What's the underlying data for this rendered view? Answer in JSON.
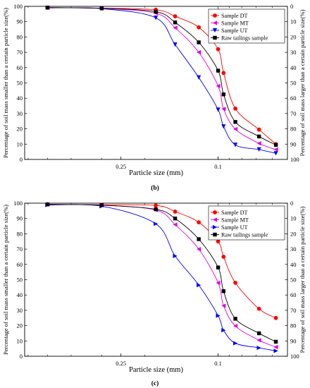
{
  "panel_captions": [
    "(b)",
    "(c)"
  ],
  "chart_data": [
    {
      "type": "line",
      "panel": "(b)",
      "xlabel": "Particle size (mm)",
      "ylabel_left": "Percentage of soil mass smaller than a certain particle size(%)",
      "ylabel_right": "Percentage of soil mass larger than a certain particle size(%)",
      "x_scale": "log-reversed",
      "x_ticks": [
        "0.25",
        "0.1"
      ],
      "ylim": [
        0,
        100
      ],
      "y_ticks_left": [
        "0",
        "10",
        "20",
        "30",
        "40",
        "50",
        "60",
        "70",
        "80",
        "90",
        "100"
      ],
      "y_ticks_right": [
        "100",
        "90",
        "80",
        "70",
        "60",
        "50",
        "40",
        "30",
        "20",
        "10",
        "0"
      ],
      "grid": false,
      "legend_position": "top-right",
      "series": [
        {
          "name": "Sample DT",
          "color": "#ff0000",
          "marker": "circle",
          "x": [
            0.5,
            0.3,
            0.18,
            0.15,
            0.12,
            0.1,
            0.095,
            0.085,
            0.068,
            0.058
          ],
          "y": [
            99.2,
            98.8,
            97.8,
            93.5,
            86.3,
            72.0,
            56.5,
            33.2,
            19.5,
            10.0
          ]
        },
        {
          "name": "Sample MT",
          "color": "#e000e0",
          "marker": "triangle-left",
          "x": [
            0.5,
            0.3,
            0.18,
            0.15,
            0.12,
            0.1,
            0.095,
            0.085,
            0.068,
            0.058
          ],
          "y": [
            99.1,
            98.7,
            95.5,
            86.0,
            70.0,
            48.0,
            33.0,
            19.8,
            10.5,
            6.5
          ]
        },
        {
          "name": "Sample UT",
          "color": "#0000ff",
          "marker": "triangle-down",
          "x": [
            0.5,
            0.3,
            0.18,
            0.15,
            0.12,
            0.1,
            0.095,
            0.085,
            0.068,
            0.058
          ],
          "y": [
            99.0,
            98.5,
            92.5,
            75.0,
            53.5,
            32.5,
            21.5,
            9.5,
            6.5,
            4.0
          ]
        },
        {
          "name": "Raw tailings sample",
          "color": "#000000",
          "marker": "square",
          "x": [
            0.5,
            0.3,
            0.18,
            0.15,
            0.12,
            0.1,
            0.095,
            0.085,
            0.068,
            0.058
          ],
          "y": [
            99.2,
            98.7,
            96.5,
            89.5,
            76.5,
            58.0,
            42.5,
            24.5,
            15.0,
            9.5
          ]
        }
      ]
    },
    {
      "type": "line",
      "panel": "(c)",
      "xlabel": "Particle size (mm)",
      "ylabel_left": "Percentage of soil mass smaller than a certain particle size(%)",
      "ylabel_right": "Percentage of soil mass larger than a certain particle size(%)",
      "x_scale": "log-reversed",
      "x_ticks": [
        "0.25",
        "0.1"
      ],
      "ylim": [
        0,
        100
      ],
      "y_ticks_left": [
        "0",
        "10",
        "20",
        "30",
        "40",
        "50",
        "60",
        "70",
        "80",
        "90",
        "100"
      ],
      "y_ticks_right": [
        "100",
        "90",
        "80",
        "70",
        "60",
        "50",
        "40",
        "30",
        "20",
        "10",
        "0"
      ],
      "grid": false,
      "legend_position": "top-right",
      "series": [
        {
          "name": "Sample DT",
          "color": "#ff0000",
          "marker": "circle",
          "x": [
            0.5,
            0.3,
            0.18,
            0.15,
            0.12,
            0.1,
            0.095,
            0.085,
            0.068,
            0.058
          ],
          "y": [
            99.3,
            99.0,
            98.5,
            94.5,
            87.5,
            75.0,
            65.0,
            48.0,
            31.0,
            25.0
          ]
        },
        {
          "name": "Sample MT",
          "color": "#e000e0",
          "marker": "triangle-left",
          "x": [
            0.5,
            0.3,
            0.18,
            0.15,
            0.12,
            0.1,
            0.095,
            0.085,
            0.068,
            0.058
          ],
          "y": [
            99.1,
            98.7,
            95.5,
            86.0,
            70.0,
            48.0,
            33.0,
            19.8,
            10.5,
            6.0
          ]
        },
        {
          "name": "Sample UT",
          "color": "#0000ff",
          "marker": "triangle-right",
          "x": [
            0.5,
            0.3,
            0.18,
            0.15,
            0.12,
            0.1,
            0.095,
            0.085,
            0.068,
            0.058
          ],
          "y": [
            98.8,
            98.0,
            86.5,
            65.5,
            46.5,
            26.5,
            17.0,
            8.5,
            5.5,
            3.5
          ]
        },
        {
          "name": "Raw tailings sample",
          "color": "#000000",
          "marker": "square",
          "x": [
            0.5,
            0.3,
            0.18,
            0.15,
            0.12,
            0.1,
            0.095,
            0.085,
            0.068,
            0.058
          ],
          "y": [
            99.2,
            98.7,
            96.0,
            90.0,
            76.5,
            58.0,
            42.5,
            24.5,
            15.0,
            9.5
          ]
        }
      ]
    }
  ]
}
